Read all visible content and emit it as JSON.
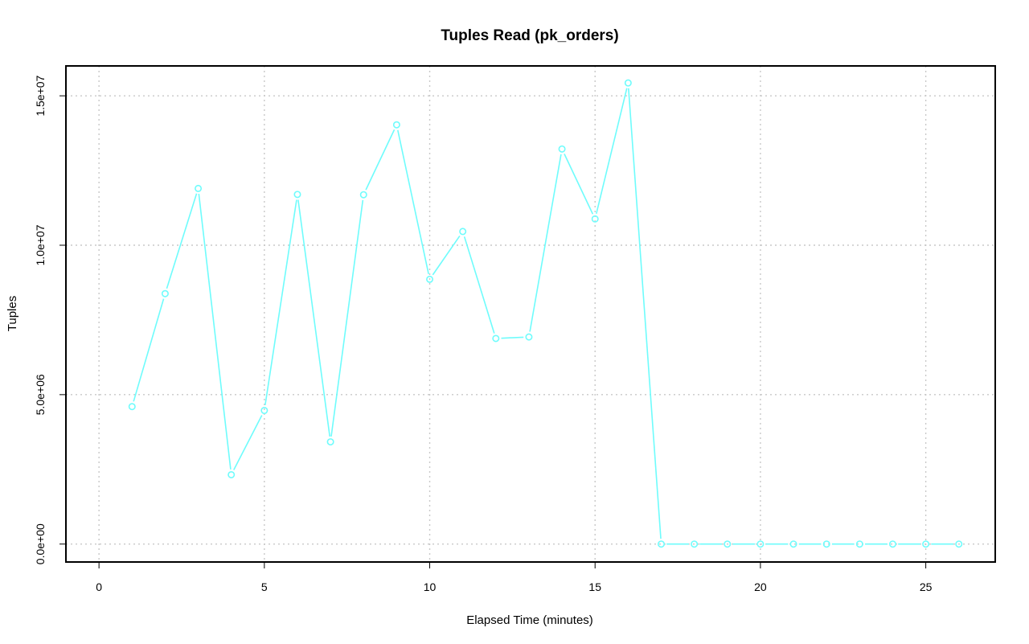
{
  "chart_data": {
    "type": "line",
    "title": "Tuples Read (pk_orders)",
    "xlabel": "Elapsed Time (minutes)",
    "ylabel": "Tuples",
    "xlim": [
      -1,
      27.1
    ],
    "ylim": [
      -600000,
      16000000
    ],
    "x_ticks": [
      0,
      5,
      10,
      15,
      20,
      25
    ],
    "x_tick_labels": [
      "0",
      "5",
      "10",
      "15",
      "20",
      "25"
    ],
    "y_ticks": [
      0,
      5000000,
      10000000,
      15000000
    ],
    "y_tick_labels": [
      "0.0e+00",
      "5.0e+06",
      "1.0e+07",
      "1.5e+07"
    ],
    "grid": true,
    "series": [
      {
        "color": "#6ffcfc",
        "marker": "open-circle",
        "x": [
          1,
          2,
          3,
          4,
          5,
          6,
          7,
          8,
          9,
          10,
          11,
          12,
          13,
          14,
          15,
          16,
          17,
          18,
          19,
          20,
          21,
          22,
          23,
          24,
          25,
          26
        ],
        "values": [
          4600000,
          8380000,
          11900000,
          2320000,
          4470000,
          11700000,
          3420000,
          11690000,
          14030000,
          8860000,
          10460000,
          6880000,
          6930000,
          13220000,
          10880000,
          15430000,
          0,
          0,
          0,
          0,
          0,
          0,
          0,
          0,
          0,
          0
        ]
      }
    ]
  }
}
